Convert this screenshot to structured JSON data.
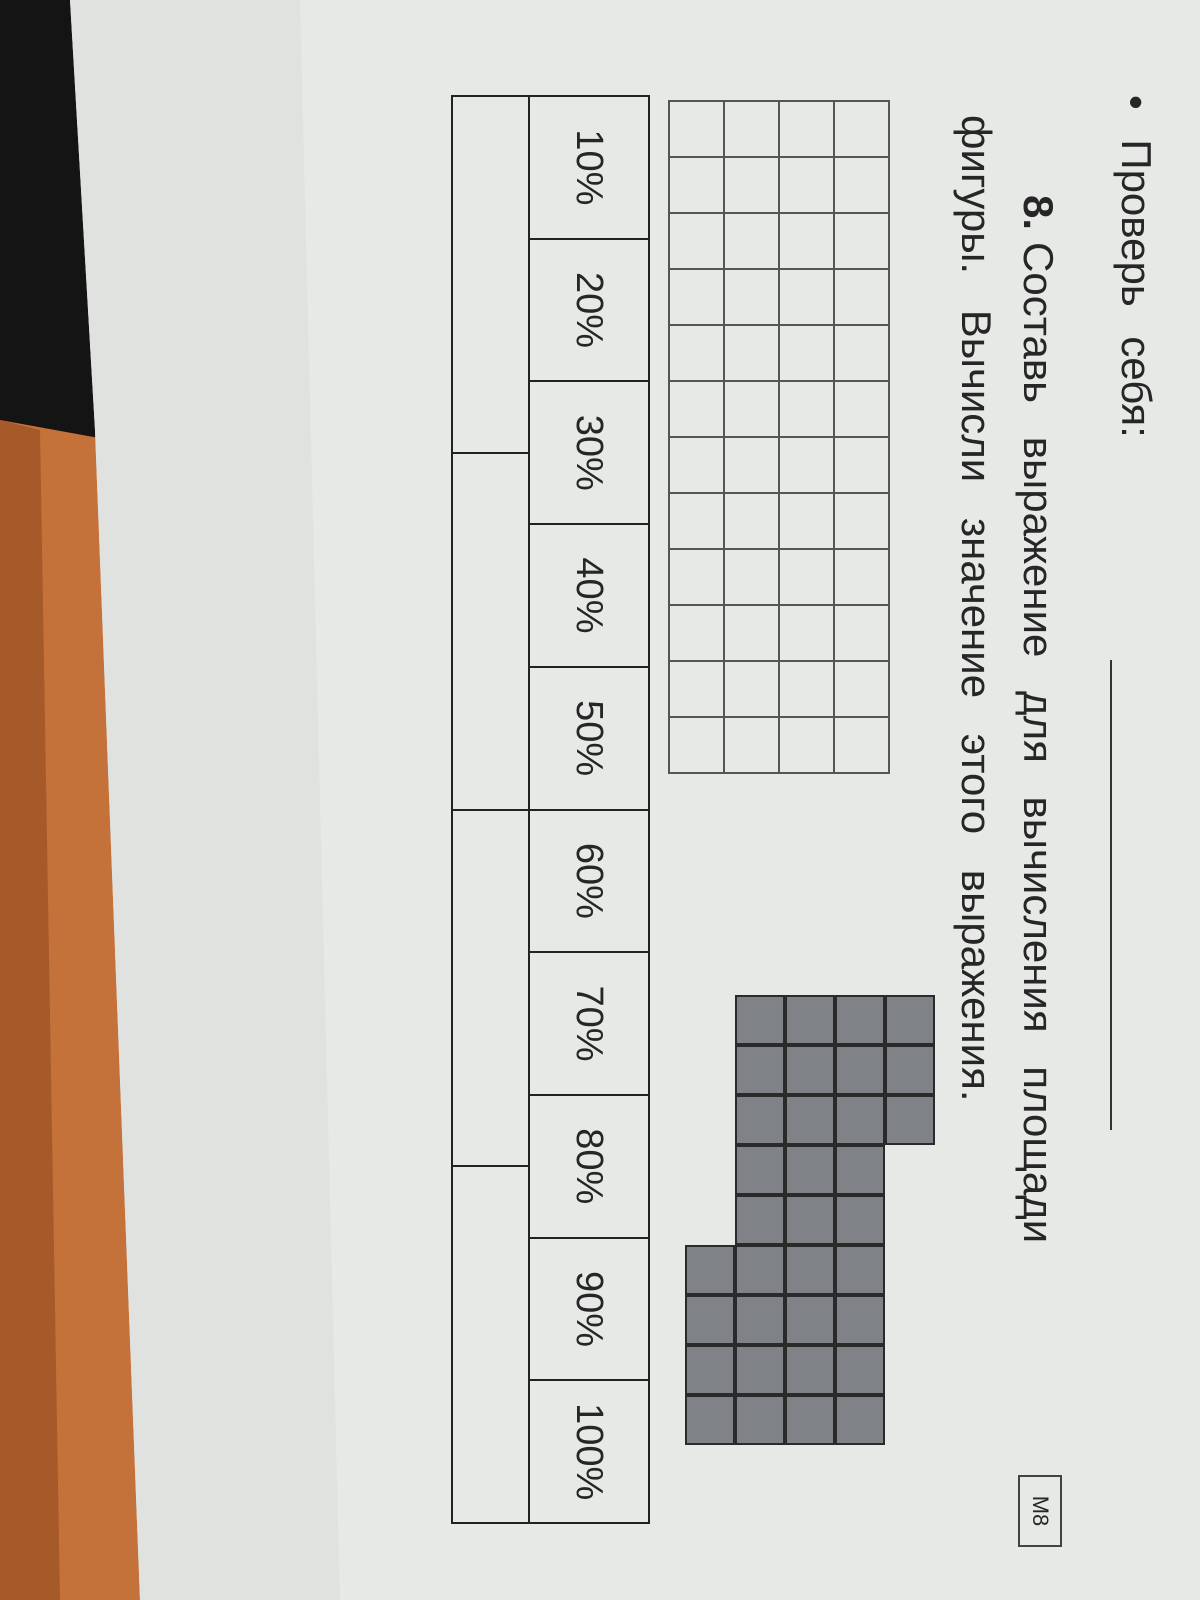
{
  "header": {
    "bullet": "•",
    "check_label": "Проверь себя:"
  },
  "badge": "М8",
  "task": {
    "number": "8.",
    "line1": "Составь выражение для вычисления площади",
    "line2": "фигуры. Вычисли значение этого выражения."
  },
  "empty_grid": {
    "cols": 12,
    "rows": 4
  },
  "shaded_figure": {
    "rows": [
      "0111000000",
      "0111111111",
      "0111111111",
      "0111111111",
      "0000001111"
    ],
    "color": "#7f8388"
  },
  "progress_table": {
    "labels": [
      "10%",
      "20%",
      "30%",
      "40%",
      "50%",
      "60%",
      "70%",
      "80%",
      "90%",
      "100%"
    ],
    "answer_cells": 4
  },
  "colors": {
    "paper": "#e6e9e6",
    "wood": "#c8743a",
    "ink": "#262626"
  }
}
